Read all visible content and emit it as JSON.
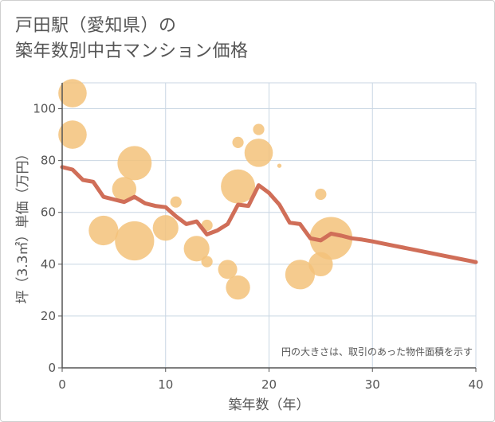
{
  "title": {
    "line1": "戸田駅（愛知県）の",
    "line2": "築年数別中古マンション価格"
  },
  "chart_data": {
    "type": "scatter",
    "xlabel": "築年数（年）",
    "ylabel": "坪（3.3㎡）単価（万円）",
    "xlim": [
      0,
      40
    ],
    "ylim": [
      0,
      110
    ],
    "xticks": [
      0,
      10,
      20,
      30,
      40
    ],
    "yticks": [
      0,
      20,
      40,
      60,
      80,
      100
    ],
    "grid": true,
    "annotation": "円の大きさは、取引のあった物件面積を示す",
    "colors": {
      "bubble": "#f3c27a",
      "line": "#d06e58",
      "grid": "#c9d6e3",
      "axis": "#555555"
    },
    "bubbles": [
      {
        "x": 1,
        "y": 106,
        "size": 2.2
      },
      {
        "x": 1,
        "y": 90,
        "size": 2.2
      },
      {
        "x": 4,
        "y": 53,
        "size": 2.4
      },
      {
        "x": 6,
        "y": 69,
        "size": 1.6
      },
      {
        "x": 7,
        "y": 79,
        "size": 3.2
      },
      {
        "x": 7,
        "y": 49,
        "size": 4.2
      },
      {
        "x": 10,
        "y": 54,
        "size": 1.8
      },
      {
        "x": 11,
        "y": 64,
        "size": 0.35
      },
      {
        "x": 13,
        "y": 46,
        "size": 1.8
      },
      {
        "x": 14,
        "y": 55,
        "size": 0.35
      },
      {
        "x": 14,
        "y": 41,
        "size": 0.35
      },
      {
        "x": 16,
        "y": 38,
        "size": 1.0
      },
      {
        "x": 17,
        "y": 87,
        "size": 0.35
      },
      {
        "x": 17,
        "y": 70,
        "size": 3.2
      },
      {
        "x": 17,
        "y": 31,
        "size": 1.6
      },
      {
        "x": 19,
        "y": 92,
        "size": 0.35
      },
      {
        "x": 19,
        "y": 83,
        "size": 2.2
      },
      {
        "x": 21,
        "y": 78,
        "size": 0.05
      },
      {
        "x": 23,
        "y": 36,
        "size": 2.4
      },
      {
        "x": 25,
        "y": 67,
        "size": 0.35
      },
      {
        "x": 25,
        "y": 40,
        "size": 1.6
      },
      {
        "x": 26,
        "y": 50,
        "size": 5.0
      }
    ],
    "trend": {
      "x": [
        0,
        1,
        2,
        3,
        4,
        5,
        6,
        7,
        8,
        9,
        10,
        11,
        12,
        13,
        14,
        15,
        16,
        17,
        18,
        19,
        20,
        21,
        22,
        23,
        24,
        25,
        26,
        27,
        28,
        29,
        30,
        31,
        32,
        33,
        34,
        35,
        36,
        37,
        38,
        39,
        40
      ],
      "y": [
        77.5,
        76.5,
        72.5,
        71.8,
        66,
        65,
        64,
        66,
        63.5,
        62.5,
        62,
        58.5,
        55.5,
        56.5,
        51.5,
        53,
        55.5,
        63,
        62.5,
        70.5,
        67.5,
        63,
        56,
        55.5,
        50,
        49.2,
        51.8,
        51,
        50,
        49.5,
        48.8,
        48,
        47.2,
        46.4,
        45.6,
        44.8,
        44,
        43.2,
        42.4,
        41.6,
        40.8
      ]
    }
  }
}
